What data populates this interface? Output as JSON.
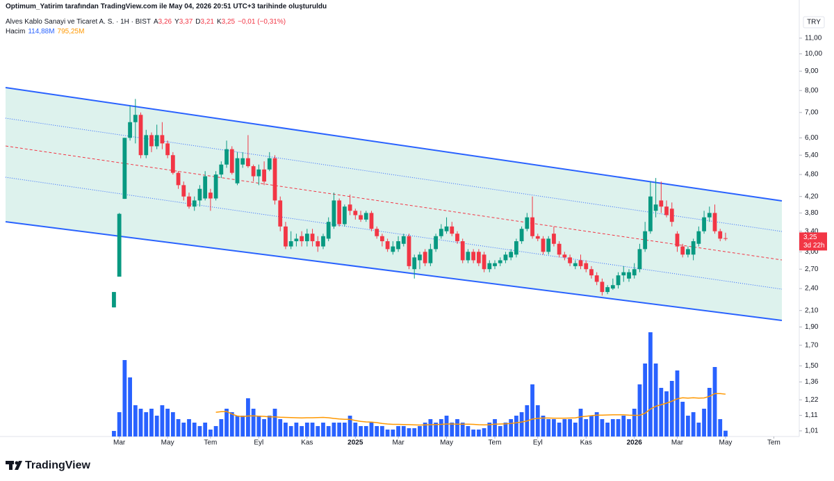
{
  "header": "Optimum_Yatirim tarafından TradingView.com ile May 04, 2026 20:51 UTC+3 tarihinde oluşturuldu",
  "legend": {
    "symbol": "Alves Kablo Sanayi ve Ticaret A. S. · 1H · BIST",
    "open_key": "A",
    "open": "3,26",
    "high_key": "Y",
    "high": "3,37",
    "low_key": "D",
    "low": "3,21",
    "close_key": "K",
    "close": "3,25",
    "change": "−0,01 (−0,31%)",
    "volume_key": "Hacim",
    "volume": "114,88M",
    "volume_ma": "795,25M"
  },
  "currency": "TRY",
  "last_price_label": "3,25",
  "countdown": "3d 22h",
  "brand": "TradingView",
  "chart_data": {
    "type": "candlestick",
    "log_scale": true,
    "up_color": "#089981",
    "down_color": "#f23645",
    "volume_color": "#2962ff",
    "volume_ma_color": "#ff9800",
    "open": [
      2.14,
      2.58,
      4.14,
      6.0,
      6.6,
      6.9,
      5.4,
      6.1,
      5.7,
      6.1,
      5.8,
      5.4,
      4.85,
      4.5,
      4.2,
      3.95,
      4.1,
      4.15,
      4.3,
      4.15,
      4.8,
      5.1,
      5.6,
      4.55,
      5.1,
      5.3,
      5.05,
      4.75,
      4.95,
      4.95,
      5.3,
      4.1,
      3.5,
      3.1,
      3.2,
      3.3,
      3.2,
      3.35,
      3.2,
      3.1,
      3.25,
      3.5,
      4.1,
      3.55,
      4.0,
      3.85,
      3.75,
      3.65,
      3.8,
      3.45,
      3.3,
      3.2,
      3.0,
      3.05,
      3.15,
      3.3,
      2.7,
      2.85,
      3.0,
      2.8,
      3.05,
      3.3,
      3.4,
      3.5,
      3.35,
      3.2,
      2.85,
      3.0,
      3.0,
      2.95,
      2.7,
      2.75,
      2.8,
      2.85,
      2.9,
      2.95,
      3.2,
      3.45,
      3.7,
      3.3,
      3.25,
      3.0,
      3.35,
      3.15,
      2.95,
      2.9,
      2.75,
      2.85,
      2.8,
      2.7,
      2.6,
      2.5,
      2.35,
      2.4,
      2.45,
      2.6,
      2.55,
      2.6,
      2.7,
      3.05,
      3.4,
      3.85,
      4.1,
      3.95,
      3.9,
      3.35,
      3.1,
      2.95,
      2.95,
      3.15,
      3.4,
      3.7,
      3.8,
      3.4,
      3.26
    ],
    "high": [
      2.35,
      3.8,
      6.0,
      7.3,
      7.6,
      7.0,
      6.3,
      6.2,
      6.5,
      6.6,
      5.9,
      5.5,
      4.9,
      4.6,
      4.3,
      4.2,
      4.5,
      4.9,
      4.4,
      4.9,
      5.2,
      5.9,
      5.7,
      5.5,
      5.5,
      6.1,
      5.1,
      5.1,
      5.2,
      5.5,
      5.4,
      4.2,
      3.6,
      3.4,
      3.35,
      3.4,
      3.45,
      3.45,
      3.3,
      3.35,
      3.7,
      4.3,
      4.15,
      4.0,
      4.25,
      3.9,
      3.85,
      3.85,
      3.85,
      3.5,
      3.35,
      3.25,
      3.2,
      3.3,
      3.35,
      3.35,
      2.95,
      3.0,
      3.05,
      3.15,
      3.35,
      3.55,
      3.7,
      3.6,
      3.4,
      3.25,
      3.05,
      3.05,
      3.05,
      3.0,
      2.85,
      2.85,
      2.9,
      3.0,
      3.05,
      3.25,
      3.5,
      3.8,
      4.2,
      3.35,
      3.3,
      3.3,
      3.5,
      3.2,
      3.0,
      2.95,
      2.85,
      2.95,
      2.85,
      2.75,
      2.65,
      2.55,
      2.45,
      2.55,
      2.65,
      2.75,
      2.7,
      2.8,
      3.15,
      3.6,
      4.6,
      4.7,
      4.6,
      4.1,
      4.05,
      3.4,
      3.15,
      3.1,
      3.25,
      3.5,
      3.85,
      3.95,
      4.0,
      3.45,
      3.37
    ],
    "low": [
      2.14,
      2.58,
      4.14,
      5.9,
      5.8,
      5.3,
      5.3,
      5.5,
      5.6,
      5.6,
      5.3,
      4.8,
      4.4,
      4.1,
      3.9,
      3.85,
      3.95,
      4.1,
      3.85,
      4.1,
      4.7,
      5.0,
      4.8,
      4.5,
      5.0,
      5.0,
      4.6,
      4.5,
      4.5,
      4.9,
      4.0,
      3.4,
      3.05,
      3.05,
      3.1,
      3.1,
      3.1,
      3.1,
      3.0,
      3.05,
      3.2,
      3.45,
      3.5,
      3.5,
      3.75,
      3.65,
      3.6,
      3.6,
      3.4,
      3.25,
      3.1,
      3.0,
      2.95,
      3.0,
      3.1,
      2.7,
      2.55,
      2.7,
      2.75,
      2.75,
      3.0,
      3.25,
      3.35,
      3.3,
      3.15,
      2.8,
      2.8,
      2.8,
      2.75,
      2.65,
      2.65,
      2.7,
      2.75,
      2.8,
      2.85,
      2.9,
      3.15,
      3.4,
      3.25,
      3.2,
      2.95,
      2.95,
      3.1,
      2.9,
      2.85,
      2.75,
      2.7,
      2.7,
      2.65,
      2.55,
      2.45,
      2.3,
      2.32,
      2.38,
      2.4,
      2.5,
      2.5,
      2.55,
      2.65,
      3.0,
      3.35,
      3.7,
      3.8,
      3.7,
      3.5,
      3.0,
      2.9,
      2.9,
      2.85,
      3.1,
      3.35,
      3.6,
      3.35,
      3.2,
      3.21
    ],
    "close": [
      2.35,
      3.78,
      6.0,
      6.6,
      6.9,
      5.4,
      6.1,
      5.7,
      6.1,
      5.8,
      5.4,
      4.85,
      4.5,
      4.2,
      3.95,
      4.1,
      4.4,
      4.75,
      4.15,
      4.8,
      5.1,
      5.6,
      4.85,
      5.3,
      5.3,
      5.05,
      4.75,
      4.95,
      4.6,
      5.3,
      4.1,
      3.5,
      3.1,
      3.2,
      3.25,
      3.2,
      3.35,
      3.2,
      3.1,
      3.3,
      3.6,
      4.1,
      3.55,
      3.95,
      3.85,
      3.75,
      3.65,
      3.8,
      3.45,
      3.3,
      3.2,
      3.05,
      3.1,
      3.2,
      3.3,
      2.75,
      2.9,
      2.95,
      2.8,
      3.05,
      3.3,
      3.45,
      3.5,
      3.35,
      3.2,
      2.85,
      3.0,
      2.85,
      2.8,
      2.7,
      2.8,
      2.8,
      2.85,
      2.95,
      3.0,
      3.2,
      3.45,
      3.7,
      3.3,
      3.25,
      3.0,
      3.25,
      3.15,
      2.95,
      2.9,
      2.8,
      2.8,
      2.75,
      2.7,
      2.6,
      2.5,
      2.35,
      2.42,
      2.45,
      2.6,
      2.65,
      2.65,
      2.7,
      3.05,
      3.4,
      4.2,
      4.0,
      3.95,
      3.75,
      3.6,
      3.1,
      2.95,
      3.05,
      3.2,
      3.4,
      3.7,
      3.8,
      3.4,
      3.25,
      3.25
    ],
    "volume": [
      110,
      480,
      1507,
      1165,
      617,
      548,
      480,
      548,
      411,
      617,
      548,
      480,
      343,
      274,
      343,
      274,
      206,
      274,
      137,
      206,
      343,
      548,
      480,
      411,
      411,
      754,
      548,
      411,
      343,
      411,
      548,
      343,
      274,
      206,
      274,
      206,
      274,
      274,
      206,
      274,
      206,
      274,
      274,
      274,
      411,
      274,
      206,
      206,
      274,
      206,
      206,
      137,
      137,
      206,
      206,
      164,
      164,
      206,
      274,
      343,
      274,
      343,
      411,
      274,
      343,
      274,
      206,
      137,
      137,
      164,
      274,
      343,
      206,
      274,
      343,
      411,
      480,
      617,
      1028,
      617,
      411,
      343,
      343,
      274,
      343,
      343,
      274,
      548,
      343,
      411,
      480,
      343,
      274,
      343,
      343,
      411,
      343,
      548,
      1028,
      1439,
      2055,
      1439,
      959,
      891,
      1096,
      1302,
      685,
      411,
      480,
      274,
      548,
      959,
      1370,
      343,
      114.88
    ],
    "ylim": [
      0.976,
      12.64
    ],
    "yticks": [
      {
        "value": 11,
        "label": "11,00"
      },
      {
        "value": 10,
        "label": "10,00"
      },
      {
        "value": 9,
        "label": "9,00"
      },
      {
        "value": 8,
        "label": "8,00"
      },
      {
        "value": 7,
        "label": "7,00"
      },
      {
        "value": 6,
        "label": "6,00"
      },
      {
        "value": 5.4,
        "label": "5,40"
      },
      {
        "value": 4.8,
        "label": "4,80"
      },
      {
        "value": 4.2,
        "label": "4,20"
      },
      {
        "value": 3.8,
        "label": "3,80"
      },
      {
        "value": 3.4,
        "label": "3,40"
      },
      {
        "value": 3,
        "label": "3,00"
      },
      {
        "value": 2.7,
        "label": "2,70"
      },
      {
        "value": 2.4,
        "label": "2,40"
      },
      {
        "value": 2.1,
        "label": "2,10"
      },
      {
        "value": 1.9,
        "label": "1,90"
      },
      {
        "value": 1.7,
        "label": "1,70"
      },
      {
        "value": 1.5,
        "label": "1,50"
      },
      {
        "value": 1.36,
        "label": "1,36"
      },
      {
        "value": 1.22,
        "label": "1,22"
      },
      {
        "value": 1.11,
        "label": "1,11"
      },
      {
        "value": 1.01,
        "label": "1,01"
      }
    ],
    "xlim": [
      -20.2,
      124.5
    ],
    "xticks": [
      {
        "value": 1,
        "label": "Mar"
      },
      {
        "value": 10,
        "label": "May"
      },
      {
        "value": 18,
        "label": "Tem"
      },
      {
        "value": 27,
        "label": "Eyl"
      },
      {
        "value": 36,
        "label": "Kas"
      },
      {
        "value": 45,
        "label": "2025"
      },
      {
        "value": 53,
        "label": "Mar"
      },
      {
        "value": 62,
        "label": "May"
      },
      {
        "value": 71,
        "label": "Tem"
      },
      {
        "value": 79,
        "label": "Eyl"
      },
      {
        "value": 88,
        "label": "Kas"
      },
      {
        "value": 97,
        "label": "2026"
      },
      {
        "value": 105,
        "label": "Mar"
      },
      {
        "value": 114,
        "label": "May"
      },
      {
        "value": 123,
        "label": "Tem"
      }
    ]
  }
}
